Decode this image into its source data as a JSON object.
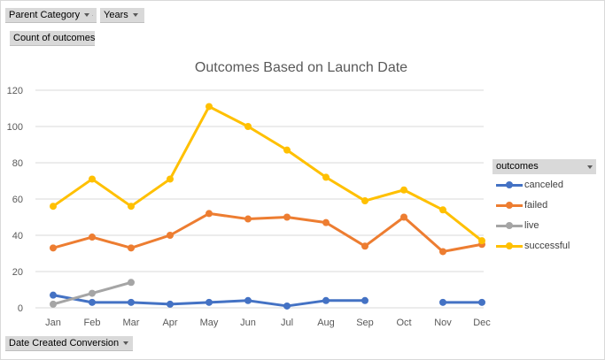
{
  "filters": {
    "parent_category": "Parent Category",
    "years": "Years",
    "values_field": "Count of outcomes",
    "axis_field": "Date Created Conversion"
  },
  "legend": {
    "title": "outcomes",
    "items": [
      {
        "label": "canceled",
        "color": "#4472c4"
      },
      {
        "label": "failed",
        "color": "#ed7d31"
      },
      {
        "label": "live",
        "color": "#a5a5a5"
      },
      {
        "label": "successful",
        "color": "#ffc000"
      }
    ]
  },
  "chart_data": {
    "type": "line",
    "title": "Outcomes Based on Launch Date",
    "xlabel": "",
    "ylabel": "",
    "ylim": [
      0,
      120
    ],
    "yticks": [
      0,
      20,
      40,
      60,
      80,
      100,
      120
    ],
    "grid": true,
    "legend_position": "right",
    "categories": [
      "Jan",
      "Feb",
      "Mar",
      "Apr",
      "May",
      "Jun",
      "Jul",
      "Aug",
      "Sep",
      "Oct",
      "Nov",
      "Dec"
    ],
    "series": [
      {
        "name": "canceled",
        "color": "#4472c4",
        "values": [
          7,
          3,
          3,
          2,
          3,
          4,
          1,
          4,
          4,
          null,
          3,
          3
        ]
      },
      {
        "name": "failed",
        "color": "#ed7d31",
        "values": [
          33,
          39,
          33,
          40,
          52,
          49,
          50,
          47,
          34,
          50,
          31,
          35
        ]
      },
      {
        "name": "live",
        "color": "#a5a5a5",
        "values": [
          2,
          8,
          14,
          null,
          null,
          null,
          null,
          null,
          null,
          null,
          null,
          null
        ]
      },
      {
        "name": "successful",
        "color": "#ffc000",
        "values": [
          56,
          71,
          56,
          71,
          111,
          100,
          87,
          72,
          59,
          65,
          54,
          37
        ]
      }
    ]
  }
}
